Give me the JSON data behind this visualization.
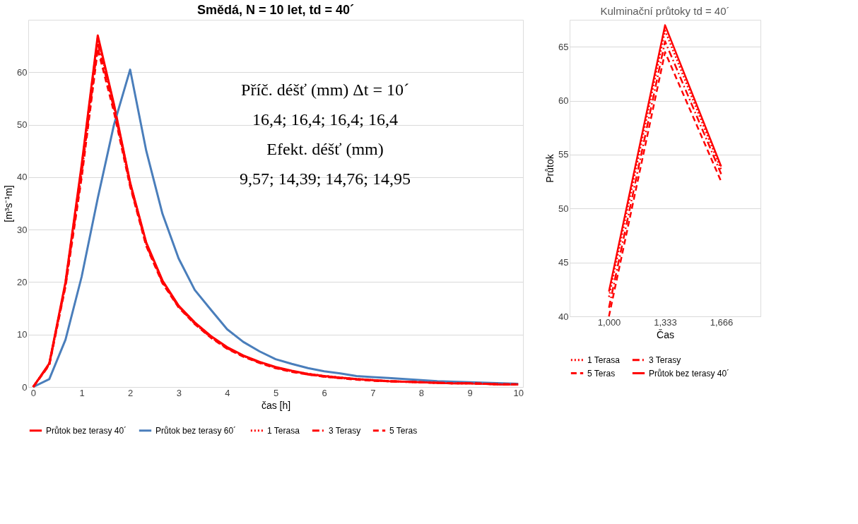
{
  "chart_data": [
    {
      "type": "line",
      "title": "Smědá, N = 10 let, td = 40´",
      "xlabel": "čas [h]",
      "ylabel": "[m³s⁻¹m]",
      "annotations": [
        "Příč. déšť (mm) Δt = 10´",
        "16,4; 16,4; 16,4; 16,4",
        "Efekt. déšť (mm)",
        "9,57; 14,39; 14,76; 14,95"
      ],
      "x": [
        0,
        0.333,
        0.667,
        1,
        1.333,
        1.667,
        2,
        2.333,
        2.667,
        3,
        3.333,
        3.667,
        4,
        4.333,
        4.667,
        5,
        5.333,
        5.667,
        6,
        6.333,
        6.667,
        7,
        7.333,
        7.667,
        8,
        8.333,
        8.667,
        9,
        9.333,
        9.667,
        10
      ],
      "xlim": [
        -0.1,
        10.1
      ],
      "xticks": [
        0,
        1,
        2,
        3,
        4,
        5,
        6,
        7,
        8,
        9,
        10
      ],
      "ylim": [
        0,
        70
      ],
      "yticks": [
        0,
        10,
        20,
        30,
        40,
        50,
        60
      ],
      "grid": "y",
      "legend": "bottom",
      "series": [
        {
          "name": "Průtok bez terasy 40´",
          "color": "#ff0000",
          "line_style": "solid",
          "values": [
            0,
            4.5,
            20,
            42.3,
            67,
            53.9,
            39,
            27.5,
            20.3,
            15.5,
            12.3,
            9.7,
            7.6,
            6,
            4.8,
            3.8,
            3.1,
            2.5,
            2.1,
            1.8,
            1.5,
            1.3,
            1.1,
            1,
            0.9,
            0.8,
            0.7,
            0.7,
            0.6,
            0.5,
            0.5
          ]
        },
        {
          "name": "Průtok bez terasy  60´",
          "color": "#4a7ebb",
          "line_style": "solid",
          "values": [
            0,
            1.5,
            9,
            21,
            36,
            50,
            60.5,
            45,
            33,
            24.5,
            18.5,
            14.7,
            11,
            8.6,
            6.8,
            5.3,
            4.4,
            3.6,
            3,
            2.6,
            2.1,
            1.9,
            1.7,
            1.5,
            1.3,
            1.1,
            1,
            0.9,
            0.8,
            0.7,
            0.6
          ]
        },
        {
          "name": "1 Terasa",
          "color": "#ff0000",
          "line_style": "dotted",
          "values": [
            0,
            4.4,
            19.8,
            41.8,
            66.5,
            53.6,
            38.8,
            27.3,
            20.1,
            15.4,
            12.2,
            9.6,
            7.5,
            5.9,
            4.7,
            3.7,
            3,
            2.5,
            2.1,
            1.8,
            1.5,
            1.3,
            1.1,
            1,
            0.9,
            0.8,
            0.7,
            0.7,
            0.6,
            0.5,
            0.5
          ]
        },
        {
          "name": "3 Terasy",
          "color": "#ff0000",
          "line_style": "dashdot",
          "values": [
            0,
            4.3,
            19.5,
            40.8,
            65.5,
            53.2,
            38.6,
            27.1,
            20,
            15.3,
            12.1,
            9.5,
            7.4,
            5.9,
            4.7,
            3.7,
            3,
            2.4,
            2,
            1.7,
            1.5,
            1.3,
            1.1,
            1,
            0.9,
            0.8,
            0.7,
            0.7,
            0.6,
            0.5,
            0.5
          ]
        },
        {
          "name": "5 Teras",
          "color": "#ff0000",
          "line_style": "dashed",
          "values": [
            0,
            4.2,
            19.2,
            40,
            64.5,
            52.5,
            38.3,
            26.9,
            19.8,
            15.2,
            12,
            9.4,
            7.3,
            5.8,
            4.6,
            3.6,
            2.9,
            2.4,
            2,
            1.7,
            1.4,
            1.2,
            1.1,
            1,
            0.9,
            0.8,
            0.7,
            0.7,
            0.6,
            0.5,
            0.5
          ]
        }
      ]
    },
    {
      "type": "line",
      "title": "Kulminační průtoky td = 40´",
      "xlabel": "Čas",
      "ylabel": "Průtok",
      "categories": [
        "1,000",
        "1,333",
        "1,666"
      ],
      "ylim": [
        40,
        67.5
      ],
      "yticks": [
        40,
        45,
        50,
        55,
        60,
        65
      ],
      "grid": "y",
      "legend": "bottom",
      "series": [
        {
          "name": "1 Terasa",
          "color": "#ff0000",
          "line_style": "dotted",
          "values": [
            41.8,
            66.5,
            53.6
          ]
        },
        {
          "name": "3 Terasy",
          "color": "#ff0000",
          "line_style": "dashdot",
          "values": [
            40.8,
            65.5,
            53.2
          ]
        },
        {
          "name": "5 Teras",
          "color": "#ff0000",
          "line_style": "dashed",
          "values": [
            40,
            64.5,
            52.5
          ]
        },
        {
          "name": "Průtok bez terasy 40´",
          "color": "#ff0000",
          "line_style": "solid",
          "values": [
            42.3,
            67,
            53.9
          ]
        }
      ]
    }
  ]
}
